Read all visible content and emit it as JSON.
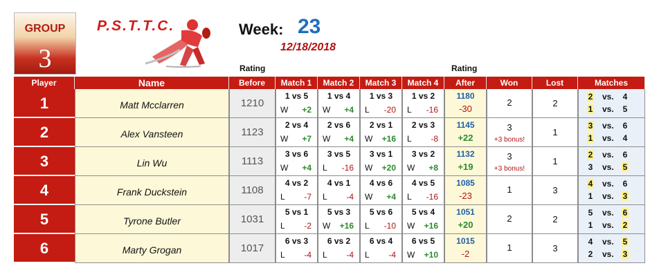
{
  "group": {
    "label": "GROUP",
    "number": "3"
  },
  "logo": {
    "text": "P.S.T.T.C."
  },
  "week": {
    "label": "Week:",
    "number": "23",
    "date": "12/18/2018"
  },
  "rating_labels": {
    "before": "Rating",
    "after": "Rating"
  },
  "headers": {
    "player": "Player",
    "name": "Name",
    "before": "Before",
    "match1": "Match 1",
    "match2": "Match 2",
    "match3": "Match 3",
    "match4": "Match 4",
    "after": "After",
    "won": "Won",
    "lost": "Lost",
    "matches": "Matches"
  },
  "rows": [
    {
      "player": "1",
      "name": "Matt Mcclarren",
      "before": "1210",
      "matches": [
        {
          "pair": "1 vs 5",
          "res": "W",
          "pts": "+2"
        },
        {
          "pair": "1 vs 4",
          "res": "W",
          "pts": "+4"
        },
        {
          "pair": "1 vs 3",
          "res": "L",
          "pts": "-20"
        },
        {
          "pair": "1 vs 2",
          "res": "L",
          "pts": "-16"
        }
      ],
      "after": "1180",
      "change": "-30",
      "won": "2",
      "bonus": "",
      "lost": "2",
      "sched": [
        {
          "a": "2",
          "vs": "vs.",
          "b": "4",
          "ha": true,
          "hb": false
        },
        {
          "a": "1",
          "vs": "vs.",
          "b": "5",
          "ha": true,
          "hb": false
        }
      ]
    },
    {
      "player": "2",
      "name": "Alex Vansteen",
      "before": "1123",
      "matches": [
        {
          "pair": "2 vs 4",
          "res": "W",
          "pts": "+7"
        },
        {
          "pair": "2 vs 6",
          "res": "W",
          "pts": "+4"
        },
        {
          "pair": "2 vs 1",
          "res": "W",
          "pts": "+16"
        },
        {
          "pair": "2 vs 3",
          "res": "L",
          "pts": "-8"
        }
      ],
      "after": "1145",
      "change": "+22",
      "won": "3",
      "bonus": "+3 bonus!",
      "lost": "1",
      "sched": [
        {
          "a": "3",
          "vs": "vs.",
          "b": "6",
          "ha": true,
          "hb": false
        },
        {
          "a": "1",
          "vs": "vs.",
          "b": "4",
          "ha": true,
          "hb": false
        }
      ]
    },
    {
      "player": "3",
      "name": "Lin Wu",
      "before": "1113",
      "matches": [
        {
          "pair": "3 vs 6",
          "res": "W",
          "pts": "+4"
        },
        {
          "pair": "3 vs 5",
          "res": "L",
          "pts": "-16"
        },
        {
          "pair": "3 vs 1",
          "res": "W",
          "pts": "+20"
        },
        {
          "pair": "3 vs 2",
          "res": "W",
          "pts": "+8"
        }
      ],
      "after": "1132",
      "change": "+19",
      "won": "3",
      "bonus": "+3 bonus!",
      "lost": "1",
      "sched": [
        {
          "a": "2",
          "vs": "vs.",
          "b": "6",
          "ha": true,
          "hb": false
        },
        {
          "a": "3",
          "vs": "vs.",
          "b": "5",
          "ha": false,
          "hb": true
        }
      ]
    },
    {
      "player": "4",
      "name": "Frank Duckstein",
      "before": "1108",
      "matches": [
        {
          "pair": "4 vs 2",
          "res": "L",
          "pts": "-7"
        },
        {
          "pair": "4 vs 1",
          "res": "L",
          "pts": "-4"
        },
        {
          "pair": "4 vs 6",
          "res": "W",
          "pts": "+4"
        },
        {
          "pair": "4 vs 5",
          "res": "L",
          "pts": "-16"
        }
      ],
      "after": "1085",
      "change": "-23",
      "won": "1",
      "bonus": "",
      "lost": "3",
      "sched": [
        {
          "a": "4",
          "vs": "vs.",
          "b": "6",
          "ha": true,
          "hb": false
        },
        {
          "a": "1",
          "vs": "vs.",
          "b": "3",
          "ha": false,
          "hb": true
        }
      ]
    },
    {
      "player": "5",
      "name": "Tyrone Butler",
      "before": "1031",
      "matches": [
        {
          "pair": "5 vs 1",
          "res": "L",
          "pts": "-2"
        },
        {
          "pair": "5 vs 3",
          "res": "W",
          "pts": "+16"
        },
        {
          "pair": "5 vs 6",
          "res": "L",
          "pts": "-10"
        },
        {
          "pair": "5 vs 4",
          "res": "W",
          "pts": "+16"
        }
      ],
      "after": "1051",
      "change": "+20",
      "won": "2",
      "bonus": "",
      "lost": "2",
      "sched": [
        {
          "a": "5",
          "vs": "vs.",
          "b": "6",
          "ha": false,
          "hb": true
        },
        {
          "a": "1",
          "vs": "vs.",
          "b": "2",
          "ha": false,
          "hb": true
        }
      ]
    },
    {
      "player": "6",
      "name": "Marty Grogan",
      "before": "1017",
      "matches": [
        {
          "pair": "6 vs 3",
          "res": "L",
          "pts": "-4"
        },
        {
          "pair": "6 vs 2",
          "res": "L",
          "pts": "-4"
        },
        {
          "pair": "6 vs 4",
          "res": "L",
          "pts": "-4"
        },
        {
          "pair": "6 vs 5",
          "res": "W",
          "pts": "+10"
        }
      ],
      "after": "1015",
      "change": "-2",
      "won": "1",
      "bonus": "",
      "lost": "3",
      "sched": [
        {
          "a": "4",
          "vs": "vs.",
          "b": "5",
          "ha": false,
          "hb": true
        },
        {
          "a": "2",
          "vs": "vs.",
          "b": "3",
          "ha": false,
          "hb": true
        }
      ]
    }
  ]
}
